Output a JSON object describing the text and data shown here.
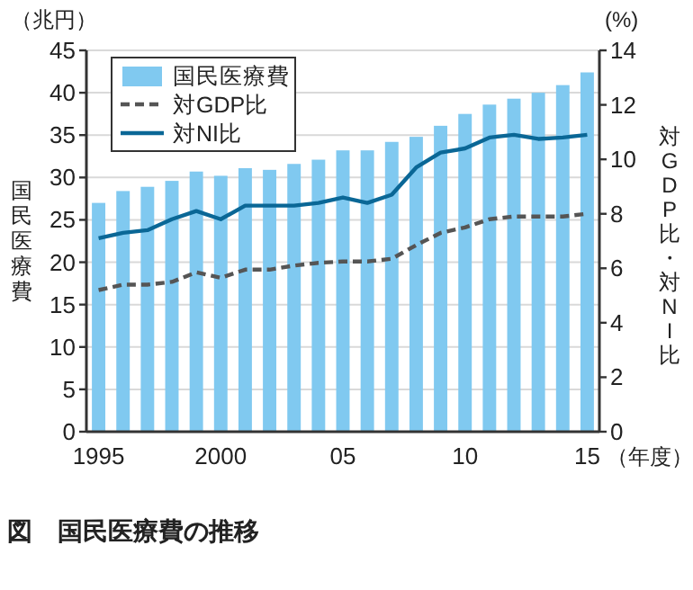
{
  "chart_data": {
    "type": "bar",
    "title": "図　国民医療費の推移",
    "xlabel": "（年度）",
    "ylabel": "国民医療費",
    "y2label": "対GDP比・対NI比",
    "annotations": [
      "（兆円）",
      "(%)"
    ],
    "x": [
      1995,
      1996,
      1997,
      1998,
      1999,
      2000,
      2001,
      2002,
      2003,
      2004,
      2005,
      2006,
      2007,
      2008,
      2009,
      2010,
      2011,
      2012,
      2013,
      2014,
      2015
    ],
    "series": [
      {
        "name": "国民医療費",
        "color": "#80c9f0",
        "values": [
          27.0,
          28.4,
          28.9,
          29.6,
          30.7,
          30.2,
          31.1,
          30.9,
          31.6,
          32.1,
          33.2,
          33.2,
          34.2,
          34.8,
          36.1,
          37.5,
          38.6,
          39.3,
          40.0,
          40.9,
          42.4
        ]
      },
      {
        "name": "対GDP比",
        "type": "line",
        "axis": "y2",
        "color": "#555555",
        "line_style": "dashed",
        "values": [
          5.2,
          5.4,
          5.4,
          5.5,
          5.85,
          5.65,
          5.95,
          5.95,
          6.1,
          6.2,
          6.25,
          6.25,
          6.35,
          6.85,
          7.3,
          7.5,
          7.8,
          7.9,
          7.9,
          7.9,
          8.0
        ]
      },
      {
        "name": "対NI比",
        "type": "line",
        "axis": "y2",
        "color": "#0a6796",
        "line_style": "solid",
        "values": [
          7.1,
          7.3,
          7.4,
          7.8,
          8.1,
          7.8,
          8.3,
          8.3,
          8.3,
          8.4,
          8.6,
          8.4,
          8.7,
          9.7,
          10.25,
          10.4,
          10.8,
          10.9,
          10.75,
          10.8,
          10.9
        ]
      }
    ],
    "xlim": [
      1994.5,
      2015.5
    ],
    "xticks": [
      {
        "value": 1995,
        "label": "1995"
      },
      {
        "value": 2000,
        "label": "2000"
      },
      {
        "value": 2005,
        "label": "05"
      },
      {
        "value": 2010,
        "label": "10"
      },
      {
        "value": 2015,
        "label": "15"
      }
    ],
    "ylim": [
      0,
      45
    ],
    "yticks": [
      0,
      5,
      10,
      15,
      20,
      25,
      30,
      35,
      40,
      45
    ],
    "y2lim": [
      0,
      14
    ],
    "y2ticks": [
      0,
      2,
      4,
      6,
      8,
      10,
      12,
      14
    ],
    "grid": "y",
    "legend": "top left"
  }
}
